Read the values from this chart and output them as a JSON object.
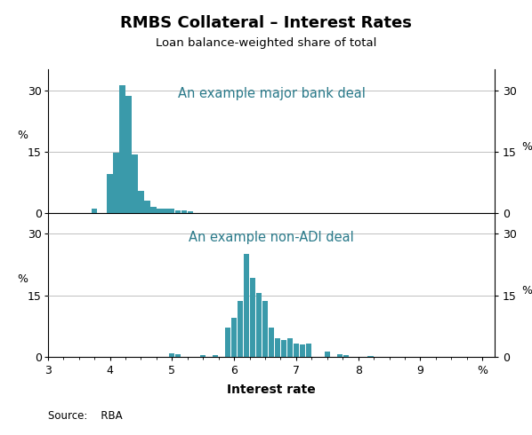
{
  "title": "RMBS Collateral – Interest Rates",
  "subtitle": "Loan balance-weighted share of total",
  "xlabel": "Interest rate",
  "source": "Source:    RBA",
  "bar_color": "#3a9aaa",
  "xlim": [
    3,
    10.2
  ],
  "xtick_positions": [
    3,
    4,
    5,
    6,
    7,
    8,
    9,
    10.0
  ],
  "xticklabels": [
    "3",
    "4",
    "5",
    "6",
    "7",
    "8",
    "9",
    "%"
  ],
  "ylim": [
    0,
    35
  ],
  "yticks": [
    0,
    15,
    30
  ],
  "panel1_label": "An example major bank deal",
  "panel2_label": "An example non-ADI deal",
  "panel1_data": {
    "centers": [
      3.75,
      4.0,
      4.1,
      4.2,
      4.3,
      4.4,
      4.5,
      4.6,
      4.7,
      4.8,
      4.9,
      5.0,
      5.1,
      5.2,
      5.3
    ],
    "heights": [
      1.0,
      9.5,
      14.8,
      31.2,
      28.7,
      14.2,
      5.5,
      3.0,
      1.6,
      1.2,
      1.1,
      1.0,
      0.7,
      0.7,
      0.5
    ]
  },
  "panel2_data": {
    "centers": [
      5.0,
      5.1,
      5.5,
      5.7,
      5.9,
      6.0,
      6.1,
      6.2,
      6.3,
      6.4,
      6.5,
      6.6,
      6.7,
      6.8,
      6.9,
      7.0,
      7.1,
      7.2,
      7.5,
      7.7,
      7.8,
      8.2
    ],
    "heights": [
      0.9,
      0.7,
      0.3,
      0.4,
      7.0,
      9.5,
      13.5,
      25.0,
      19.2,
      15.5,
      13.5,
      7.0,
      4.5,
      4.0,
      4.5,
      3.2,
      3.0,
      3.2,
      1.3,
      0.6,
      0.3,
      0.2
    ]
  }
}
